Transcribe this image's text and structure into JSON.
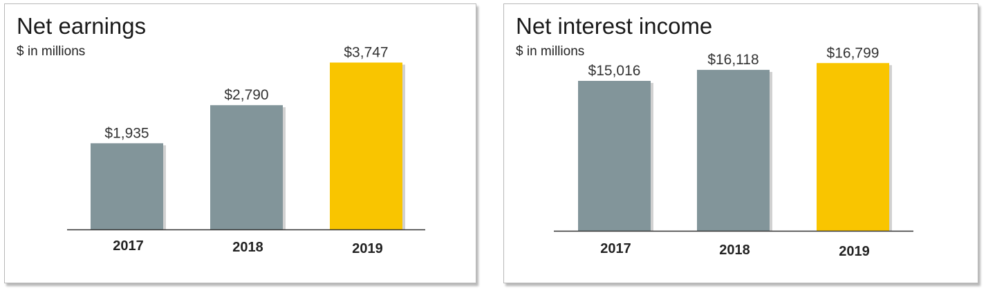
{
  "colors": {
    "bar_default": "#82959a",
    "bar_highlight": "#f9c500",
    "axis": "#333333"
  },
  "chart_data": [
    {
      "type": "bar",
      "title": "Net earnings",
      "subtitle": "$ in millions",
      "categories": [
        "2017",
        "2018",
        "2019"
      ],
      "values": [
        1935,
        2790,
        3747
      ],
      "value_labels": [
        "$1,935",
        "$2,790",
        "$3,747"
      ],
      "highlight_index": 2,
      "ylim": [
        0,
        4500
      ],
      "grid": false,
      "legend": "none"
    },
    {
      "type": "bar",
      "title": "Net interest income",
      "subtitle": "$ in millions",
      "categories": [
        "2017",
        "2018",
        "2019"
      ],
      "values": [
        15016,
        16118,
        16799
      ],
      "value_labels": [
        "$15,016",
        "$16,118",
        "$16,799"
      ],
      "highlight_index": 2,
      "ylim": [
        0,
        20000
      ],
      "grid": false,
      "legend": "none"
    }
  ]
}
